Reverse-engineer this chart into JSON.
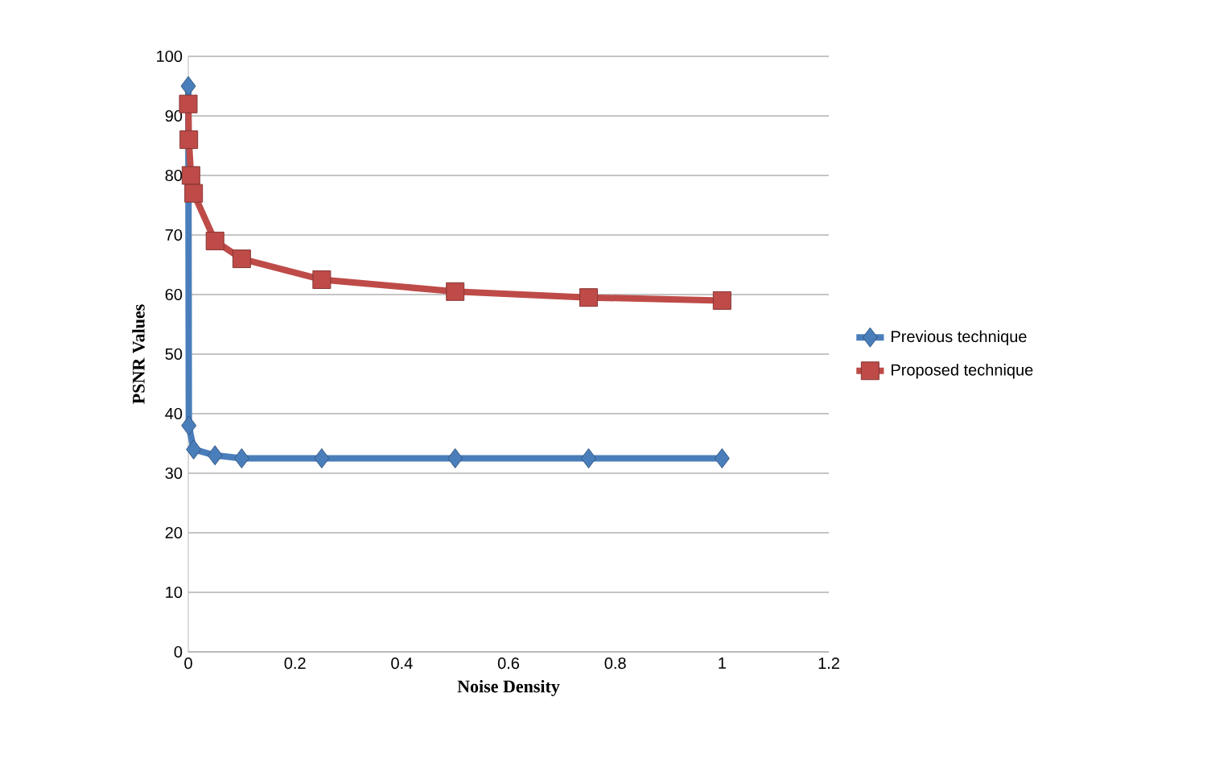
{
  "chart_data": {
    "type": "line",
    "xlabel": "Noise Density",
    "ylabel": "PSNR Values",
    "xlim": [
      0,
      1.2
    ],
    "xticks": [
      0,
      0.2,
      0.4,
      0.6,
      0.8,
      1,
      1.2
    ],
    "ylim": [
      0,
      100
    ],
    "yticks": [
      0,
      10,
      20,
      30,
      40,
      50,
      60,
      70,
      80,
      90,
      100
    ],
    "grid": "y",
    "legend": "right",
    "series": [
      {
        "name": "Previous technique",
        "color": "#4a7ebb",
        "marker": "diamond",
        "x": [
          0,
          0.001,
          0.01,
          0.05,
          0.1,
          0.25,
          0.5,
          0.75,
          1
        ],
        "values": [
          95,
          38,
          34,
          33,
          32.5,
          32.5,
          32.5,
          32.5,
          32.5
        ]
      },
      {
        "name": "Proposed technique",
        "color": "#be4b48",
        "marker": "square",
        "x": [
          0,
          0.001,
          0.005,
          0.01,
          0.05,
          0.1,
          0.25,
          0.5,
          0.75,
          1
        ],
        "values": [
          92,
          86,
          80,
          77,
          69,
          66,
          62.5,
          60.5,
          59.5,
          59
        ]
      }
    ]
  }
}
